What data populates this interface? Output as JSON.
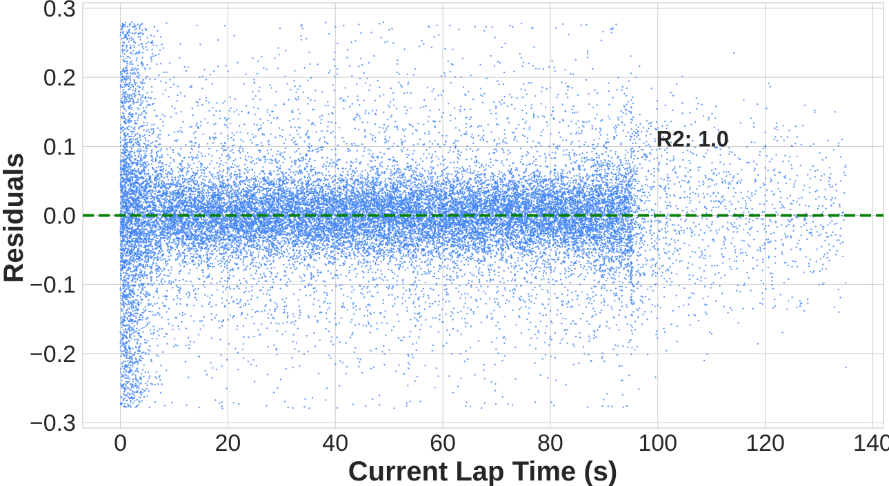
{
  "chart_data": {
    "type": "scatter",
    "xlabel": "Current Lap Time (s)",
    "ylabel": "Residuals",
    "xlim": [
      -7,
      142
    ],
    "ylim": [
      -0.308,
      0.308
    ],
    "x_ticks": [
      0,
      20,
      40,
      60,
      80,
      100,
      120,
      140
    ],
    "y_ticks": [
      0.3,
      0.2,
      0.1,
      0.0,
      -0.1,
      -0.2,
      -0.3
    ],
    "y_tick_labels": [
      "0.3",
      "0.2",
      "0.1",
      "0.0",
      "−0.1",
      "−0.2",
      "−0.3"
    ],
    "grid": true,
    "reference_line": {
      "y": 0.0,
      "style": "dashed",
      "color": "#008000"
    },
    "annotation": {
      "text": "R2: 1.0",
      "x": 100,
      "y": 0.1
    },
    "series": [
      {
        "color": "#4285f4",
        "marker_size": 1.2,
        "point_distribution": {
          "dense_x_range": [
            0,
            95
          ],
          "sparse_x_range": [
            95,
            135
          ],
          "clipped_y_range": [
            -0.28,
            0.28
          ],
          "dense_core_std": 0.03
        },
        "sample_points": [
          [
            0.2,
            0.27
          ],
          [
            1.5,
            -0.25
          ],
          [
            3.0,
            0.27
          ],
          [
            5.0,
            0.24
          ],
          [
            10.0,
            0.2
          ],
          [
            20.0,
            -0.05
          ],
          [
            35.0,
            0.1
          ],
          [
            44.0,
            0.19
          ],
          [
            44.5,
            0.16
          ],
          [
            58.0,
            0.03
          ],
          [
            72.5,
            0.275
          ],
          [
            76.0,
            0.22
          ],
          [
            90.0,
            -0.08
          ],
          [
            96.0,
            0.2
          ],
          [
            100.0,
            -0.05
          ],
          [
            105.0,
            0.05
          ],
          [
            110.0,
            -0.1
          ],
          [
            115.0,
            0.02
          ],
          [
            120.0,
            0.12
          ],
          [
            125.0,
            0.1
          ],
          [
            127.0,
            0.13
          ],
          [
            130.0,
            -0.1
          ],
          [
            133.0,
            0.15
          ],
          [
            135.0,
            -0.22
          ],
          [
            134.0,
            0.05
          ]
        ]
      }
    ]
  }
}
